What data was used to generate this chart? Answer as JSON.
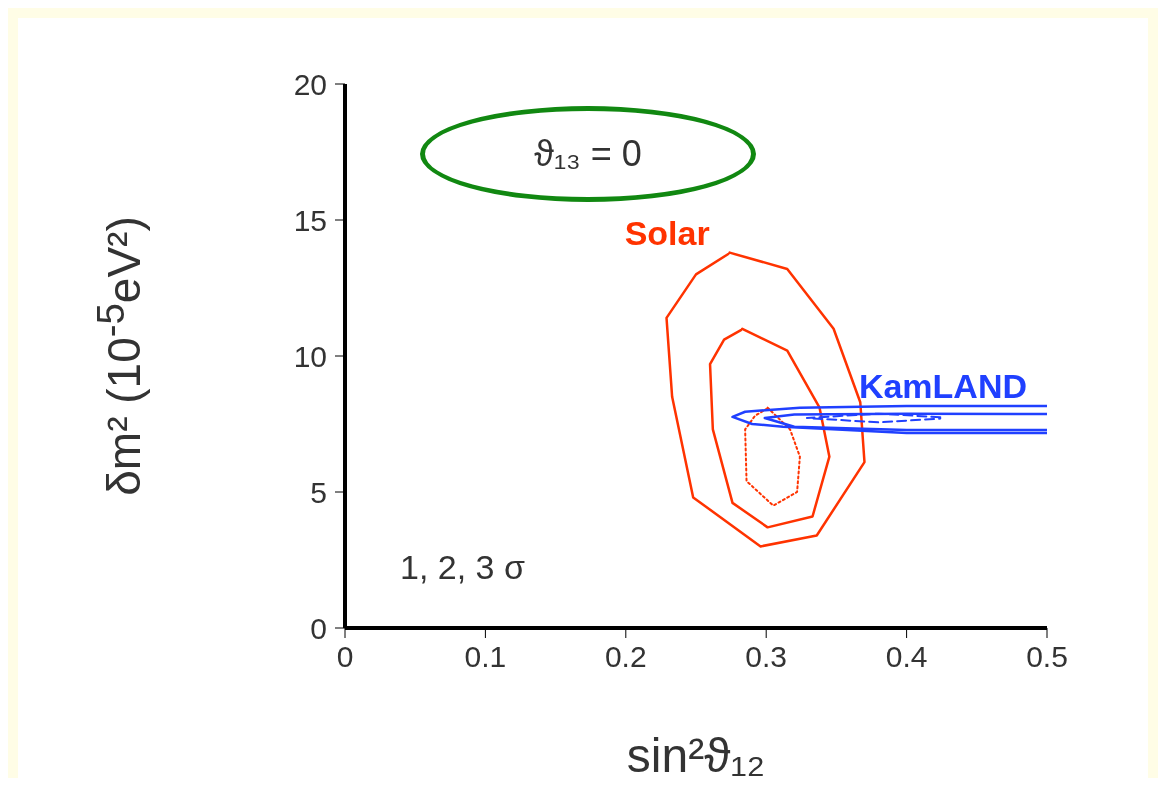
{
  "chart_data": {
    "type": "line",
    "xlabel": "sin²ϑ₁₂",
    "ylabel": "δm² (10$^{-5}$eV²)",
    "xlim": [
      0,
      0.5
    ],
    "xticks": [
      0,
      0.1,
      0.2,
      0.3,
      0.4,
      0.5
    ],
    "ylim": [
      0,
      20
    ],
    "yticks": [
      0,
      5,
      10,
      15,
      20
    ],
    "marker": "none",
    "annotations": [
      "ϑ₁₃ = 0",
      "1, 2, 3 σ"
    ],
    "series": [
      {
        "name": "Solar",
        "color": "#ff3300",
        "line_style": "solid",
        "x": [
          0.274,
          0.315,
          0.348,
          0.367,
          0.37,
          0.336,
          0.296,
          0.248,
          0.233,
          0.229,
          0.25,
          0.273
        ],
        "values": [
          13.8,
          13.2,
          11.0,
          8.3,
          6.1,
          3.4,
          3.0,
          4.8,
          8.5,
          11.4,
          13.0,
          13.75
        ]
      },
      {
        "color": "#ff3300",
        "line_style": "solid",
        "x": [
          0.283,
          0.315,
          0.338,
          0.345,
          0.333,
          0.301,
          0.276,
          0.262,
          0.26,
          0.27,
          0.282
        ],
        "values": [
          11.0,
          10.2,
          8.1,
          6.3,
          4.1,
          3.7,
          4.6,
          7.3,
          9.7,
          10.6,
          10.95
        ]
      },
      {
        "color": "#ff3300",
        "line_style": "dotted",
        "x": [
          0.301,
          0.317,
          0.324,
          0.322,
          0.305,
          0.286,
          0.285,
          0.292,
          0.3
        ],
        "values": [
          8.1,
          7.3,
          6.3,
          5.0,
          4.5,
          5.4,
          7.3,
          7.8,
          8.05
        ]
      },
      {
        "name": "KamLAND",
        "color": "#2040ff",
        "line_style": "solid",
        "x": [
          0.5,
          0.4,
          0.324,
          0.285,
          0.276,
          0.29,
          0.312,
          0.4,
          0.5
        ],
        "values": [
          8.16,
          8.16,
          8.1,
          7.95,
          7.76,
          7.5,
          7.4,
          7.17,
          7.17
        ]
      },
      {
        "color": "#2040ff",
        "line_style": "solid",
        "x": [
          0.5,
          0.4,
          0.32,
          0.299,
          0.32,
          0.4,
          0.5
        ],
        "values": [
          7.87,
          7.88,
          7.85,
          7.72,
          7.4,
          7.28,
          7.28
        ]
      },
      {
        "color": "#2040ff",
        "line_style": "dashed",
        "x": [
          0.424,
          0.38,
          0.329,
          0.38,
          0.424
        ],
        "values": [
          7.75,
          7.88,
          7.72,
          7.56,
          7.7
        ]
      }
    ]
  }
}
